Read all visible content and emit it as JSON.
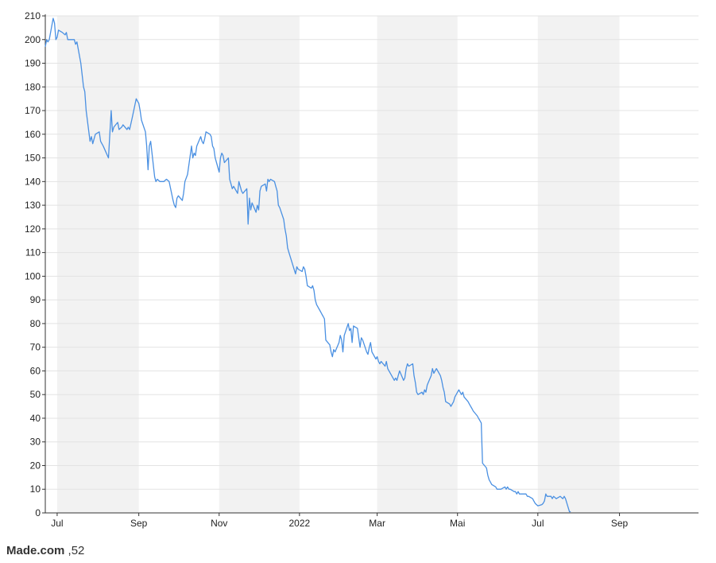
{
  "caption": {
    "name": "Made.com",
    "value": ",52"
  },
  "chart_data": {
    "type": "line",
    "title": "",
    "xlabel": "",
    "ylabel": "",
    "ylim": [
      0,
      210
    ],
    "yticks": [
      0,
      10,
      20,
      30,
      40,
      50,
      60,
      70,
      80,
      90,
      100,
      110,
      120,
      130,
      140,
      150,
      160,
      170,
      180,
      190,
      200,
      210
    ],
    "xlim": [
      "2021-06-22",
      "2022-10-31"
    ],
    "xticks": [
      {
        "date": "2021-07-01",
        "label": "Jul"
      },
      {
        "date": "2021-09-01",
        "label": "Sep"
      },
      {
        "date": "2021-11-01",
        "label": "Nov"
      },
      {
        "date": "2022-01-01",
        "label": "2022"
      },
      {
        "date": "2022-03-01",
        "label": "Mar"
      },
      {
        "date": "2022-05-01",
        "label": "Mai"
      },
      {
        "date": "2022-07-01",
        "label": "Jul"
      },
      {
        "date": "2022-09-01",
        "label": "Sep"
      }
    ],
    "shaded_months": [
      [
        "2021-07-01",
        "2021-09-01"
      ],
      [
        "2021-11-01",
        "2022-01-01"
      ],
      [
        "2022-03-01",
        "2022-05-01"
      ],
      [
        "2022-07-01",
        "2022-09-01"
      ]
    ],
    "grid": true,
    "line_color": "#4a90e2",
    "series": [
      {
        "points": [
          [
            "2021-06-22",
            197
          ],
          [
            "2021-06-23",
            200
          ],
          [
            "2021-06-24",
            199
          ],
          [
            "2021-06-25",
            200
          ],
          [
            "2021-06-28",
            209
          ],
          [
            "2021-06-29",
            207
          ],
          [
            "2021-06-30",
            200
          ],
          [
            "2021-07-01",
            201
          ],
          [
            "2021-07-02",
            204
          ],
          [
            "2021-07-05",
            203
          ],
          [
            "2021-07-07",
            202
          ],
          [
            "2021-07-08",
            203
          ],
          [
            "2021-07-09",
            200
          ],
          [
            "2021-07-12",
            200
          ],
          [
            "2021-07-14",
            200
          ],
          [
            "2021-07-15",
            198
          ],
          [
            "2021-07-16",
            199
          ],
          [
            "2021-07-19",
            190
          ],
          [
            "2021-07-21",
            180
          ],
          [
            "2021-07-22",
            178
          ],
          [
            "2021-07-23",
            170
          ],
          [
            "2021-07-26",
            157
          ],
          [
            "2021-07-27",
            159
          ],
          [
            "2021-07-28",
            156
          ],
          [
            "2021-07-30",
            160
          ],
          [
            "2021-08-02",
            161
          ],
          [
            "2021-08-03",
            157
          ],
          [
            "2021-08-05",
            155
          ],
          [
            "2021-08-09",
            150
          ],
          [
            "2021-08-10",
            160
          ],
          [
            "2021-08-11",
            170
          ],
          [
            "2021-08-12",
            161
          ],
          [
            "2021-08-13",
            163
          ],
          [
            "2021-08-16",
            165
          ],
          [
            "2021-08-17",
            162
          ],
          [
            "2021-08-19",
            163
          ],
          [
            "2021-08-20",
            164
          ],
          [
            "2021-08-23",
            162
          ],
          [
            "2021-08-24",
            163
          ],
          [
            "2021-08-25",
            162
          ],
          [
            "2021-08-27",
            167
          ],
          [
            "2021-08-30",
            175
          ],
          [
            "2021-09-01",
            173
          ],
          [
            "2021-09-02",
            170
          ],
          [
            "2021-09-03",
            166
          ],
          [
            "2021-09-06",
            161
          ],
          [
            "2021-09-07",
            155
          ],
          [
            "2021-09-08",
            145
          ],
          [
            "2021-09-09",
            155
          ],
          [
            "2021-09-10",
            157
          ],
          [
            "2021-09-13",
            142
          ],
          [
            "2021-09-14",
            140
          ],
          [
            "2021-09-15",
            141
          ],
          [
            "2021-09-17",
            140
          ],
          [
            "2021-09-20",
            140
          ],
          [
            "2021-09-22",
            141
          ],
          [
            "2021-09-24",
            140
          ],
          [
            "2021-09-27",
            132
          ],
          [
            "2021-09-28",
            130
          ],
          [
            "2021-09-29",
            129
          ],
          [
            "2021-09-30",
            133
          ],
          [
            "2021-10-01",
            134
          ],
          [
            "2021-10-04",
            132
          ],
          [
            "2021-10-05",
            135
          ],
          [
            "2021-10-06",
            140
          ],
          [
            "2021-10-08",
            143
          ],
          [
            "2021-10-11",
            155
          ],
          [
            "2021-10-12",
            150
          ],
          [
            "2021-10-13",
            152
          ],
          [
            "2021-10-14",
            151
          ],
          [
            "2021-10-15",
            155
          ],
          [
            "2021-10-18",
            159
          ],
          [
            "2021-10-19",
            157
          ],
          [
            "2021-10-20",
            156
          ],
          [
            "2021-10-21",
            158
          ],
          [
            "2021-10-22",
            161
          ],
          [
            "2021-10-25",
            160
          ],
          [
            "2021-10-26",
            159
          ],
          [
            "2021-10-27",
            155
          ],
          [
            "2021-10-28",
            154
          ],
          [
            "2021-10-29",
            150
          ],
          [
            "2021-11-01",
            144
          ],
          [
            "2021-11-02",
            150
          ],
          [
            "2021-11-03",
            152
          ],
          [
            "2021-11-04",
            151
          ],
          [
            "2021-11-05",
            148
          ],
          [
            "2021-11-08",
            150
          ],
          [
            "2021-11-09",
            141
          ],
          [
            "2021-11-10",
            139
          ],
          [
            "2021-11-11",
            137
          ],
          [
            "2021-11-12",
            138
          ],
          [
            "2021-11-15",
            135
          ],
          [
            "2021-11-16",
            140
          ],
          [
            "2021-11-17",
            138
          ],
          [
            "2021-11-18",
            136
          ],
          [
            "2021-11-19",
            135
          ],
          [
            "2021-11-22",
            137
          ],
          [
            "2021-11-23",
            122
          ],
          [
            "2021-11-24",
            133
          ],
          [
            "2021-11-25",
            128
          ],
          [
            "2021-11-26",
            131
          ],
          [
            "2021-11-29",
            127
          ],
          [
            "2021-11-30",
            130
          ],
          [
            "2021-12-01",
            128
          ],
          [
            "2021-12-02",
            136
          ],
          [
            "2021-12-03",
            138
          ],
          [
            "2021-12-06",
            139
          ],
          [
            "2021-12-07",
            136
          ],
          [
            "2021-12-08",
            141
          ],
          [
            "2021-12-09",
            140
          ],
          [
            "2021-12-10",
            141
          ],
          [
            "2021-12-13",
            140
          ],
          [
            "2021-12-14",
            138
          ],
          [
            "2021-12-15",
            136
          ],
          [
            "2021-12-16",
            130
          ],
          [
            "2021-12-17",
            129
          ],
          [
            "2021-12-20",
            124
          ],
          [
            "2021-12-21",
            120
          ],
          [
            "2021-12-22",
            117
          ],
          [
            "2021-12-23",
            112
          ],
          [
            "2021-12-24",
            110
          ],
          [
            "2021-12-29",
            101
          ],
          [
            "2021-12-30",
            104
          ],
          [
            "2021-12-31",
            103
          ],
          [
            "2022-01-03",
            102
          ],
          [
            "2022-01-04",
            104
          ],
          [
            "2022-01-05",
            103
          ],
          [
            "2022-01-06",
            100
          ],
          [
            "2022-01-07",
            96
          ],
          [
            "2022-01-10",
            95
          ],
          [
            "2022-01-11",
            96
          ],
          [
            "2022-01-12",
            94
          ],
          [
            "2022-01-13",
            90
          ],
          [
            "2022-01-14",
            88
          ],
          [
            "2022-01-17",
            85
          ],
          [
            "2022-01-18",
            84
          ],
          [
            "2022-01-19",
            83
          ],
          [
            "2022-01-20",
            82
          ],
          [
            "2022-01-21",
            73
          ],
          [
            "2022-01-24",
            71
          ],
          [
            "2022-01-25",
            68
          ],
          [
            "2022-01-26",
            66
          ],
          [
            "2022-01-27",
            69
          ],
          [
            "2022-01-28",
            68
          ],
          [
            "2022-01-31",
            72
          ],
          [
            "2022-02-01",
            75
          ],
          [
            "2022-02-02",
            73
          ],
          [
            "2022-02-03",
            68
          ],
          [
            "2022-02-04",
            75
          ],
          [
            "2022-02-07",
            80
          ],
          [
            "2022-02-08",
            77
          ],
          [
            "2022-02-09",
            78
          ],
          [
            "2022-02-10",
            72
          ],
          [
            "2022-02-11",
            79
          ],
          [
            "2022-02-14",
            78
          ],
          [
            "2022-02-15",
            74
          ],
          [
            "2022-02-16",
            70
          ],
          [
            "2022-02-17",
            74
          ],
          [
            "2022-02-18",
            73
          ],
          [
            "2022-02-21",
            68
          ],
          [
            "2022-02-22",
            67
          ],
          [
            "2022-02-23",
            70
          ],
          [
            "2022-02-24",
            72
          ],
          [
            "2022-02-25",
            68
          ],
          [
            "2022-02-28",
            65
          ],
          [
            "2022-03-01",
            66
          ],
          [
            "2022-03-02",
            64
          ],
          [
            "2022-03-03",
            63
          ],
          [
            "2022-03-04",
            64
          ],
          [
            "2022-03-07",
            62
          ],
          [
            "2022-03-08",
            64
          ],
          [
            "2022-03-09",
            61
          ],
          [
            "2022-03-10",
            60
          ],
          [
            "2022-03-11",
            59
          ],
          [
            "2022-03-14",
            56
          ],
          [
            "2022-03-15",
            57
          ],
          [
            "2022-03-16",
            56
          ],
          [
            "2022-03-17",
            58
          ],
          [
            "2022-03-18",
            60
          ],
          [
            "2022-03-21",
            56
          ],
          [
            "2022-03-22",
            57
          ],
          [
            "2022-03-23",
            61
          ],
          [
            "2022-03-24",
            63
          ],
          [
            "2022-03-25",
            62
          ],
          [
            "2022-03-28",
            63
          ],
          [
            "2022-03-29",
            58
          ],
          [
            "2022-03-30",
            55
          ],
          [
            "2022-03-31",
            51
          ],
          [
            "2022-04-01",
            50
          ],
          [
            "2022-04-04",
            51
          ],
          [
            "2022-04-05",
            50
          ],
          [
            "2022-04-06",
            52
          ],
          [
            "2022-04-07",
            51
          ],
          [
            "2022-04-08",
            54
          ],
          [
            "2022-04-11",
            58
          ],
          [
            "2022-04-12",
            61
          ],
          [
            "2022-04-13",
            59
          ],
          [
            "2022-04-14",
            60
          ],
          [
            "2022-04-15",
            61
          ],
          [
            "2022-04-18",
            58
          ],
          [
            "2022-04-19",
            56
          ],
          [
            "2022-04-20",
            53
          ],
          [
            "2022-04-21",
            51
          ],
          [
            "2022-04-22",
            47
          ],
          [
            "2022-04-25",
            46
          ],
          [
            "2022-04-26",
            45
          ],
          [
            "2022-04-27",
            46
          ],
          [
            "2022-04-28",
            47
          ],
          [
            "2022-04-29",
            49
          ],
          [
            "2022-05-02",
            52
          ],
          [
            "2022-05-03",
            51
          ],
          [
            "2022-05-04",
            50
          ],
          [
            "2022-05-05",
            51
          ],
          [
            "2022-05-06",
            49
          ],
          [
            "2022-05-09",
            47
          ],
          [
            "2022-05-10",
            46
          ],
          [
            "2022-05-11",
            45
          ],
          [
            "2022-05-12",
            44
          ],
          [
            "2022-05-13",
            43
          ],
          [
            "2022-05-16",
            41
          ],
          [
            "2022-05-17",
            40
          ],
          [
            "2022-05-18",
            39
          ],
          [
            "2022-05-19",
            38
          ],
          [
            "2022-05-20",
            21
          ],
          [
            "2022-05-23",
            19
          ],
          [
            "2022-05-24",
            16
          ],
          [
            "2022-05-25",
            14
          ],
          [
            "2022-05-26",
            13
          ],
          [
            "2022-05-27",
            12
          ],
          [
            "2022-05-30",
            11
          ],
          [
            "2022-05-31",
            10
          ],
          [
            "2022-06-01",
            10
          ],
          [
            "2022-06-03",
            10
          ],
          [
            "2022-06-06",
            11
          ],
          [
            "2022-06-07",
            10
          ],
          [
            "2022-06-08",
            11
          ],
          [
            "2022-06-09",
            10
          ],
          [
            "2022-06-10",
            10
          ],
          [
            "2022-06-13",
            9
          ],
          [
            "2022-06-14",
            9
          ],
          [
            "2022-06-15",
            8
          ],
          [
            "2022-06-16",
            9
          ],
          [
            "2022-06-17",
            8
          ],
          [
            "2022-06-20",
            8
          ],
          [
            "2022-06-21",
            8
          ],
          [
            "2022-06-22",
            8
          ],
          [
            "2022-06-23",
            7
          ],
          [
            "2022-06-24",
            7
          ],
          [
            "2022-06-27",
            6
          ],
          [
            "2022-06-28",
            5
          ],
          [
            "2022-06-29",
            4
          ],
          [
            "2022-06-30",
            3.5
          ],
          [
            "2022-07-01",
            3
          ],
          [
            "2022-07-04",
            3.5
          ],
          [
            "2022-07-05",
            4
          ],
          [
            "2022-07-06",
            5
          ],
          [
            "2022-07-07",
            8
          ],
          [
            "2022-07-08",
            7
          ],
          [
            "2022-07-11",
            7
          ],
          [
            "2022-07-12",
            6
          ],
          [
            "2022-07-13",
            7
          ],
          [
            "2022-07-14",
            6.5
          ],
          [
            "2022-07-15",
            6
          ],
          [
            "2022-07-18",
            7
          ],
          [
            "2022-07-19",
            6.5
          ],
          [
            "2022-07-20",
            6
          ],
          [
            "2022-07-21",
            7
          ],
          [
            "2022-07-22",
            6
          ],
          [
            "2022-07-25",
            0.5
          ],
          [
            "2022-07-26",
            0.5
          ]
        ]
      }
    ]
  }
}
